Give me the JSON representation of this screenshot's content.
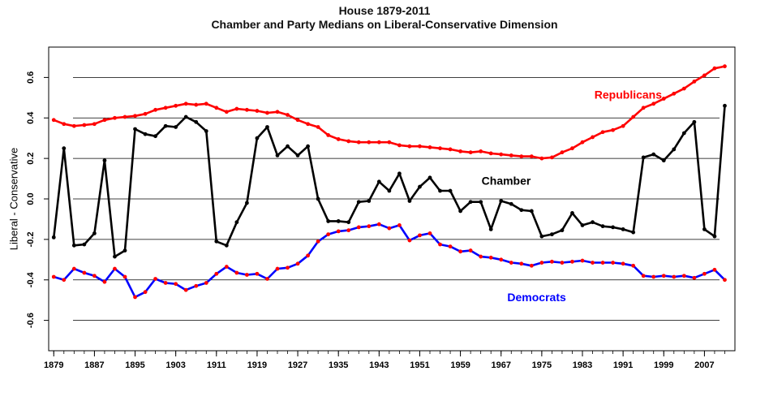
{
  "chart_data": {
    "type": "line",
    "title": "House 1879-2011",
    "subtitle": "Chamber and Party Medians on Liberal-Conservative Dimension",
    "xlabel": "",
    "ylabel": "Liberal - Conservative",
    "xlim": [
      1878,
      2013
    ],
    "ylim": [
      -0.75,
      0.75
    ],
    "x_ticks": [
      1879,
      1887,
      1895,
      1903,
      1911,
      1919,
      1927,
      1935,
      1943,
      1951,
      1959,
      1967,
      1975,
      1983,
      1991,
      1999,
      2007
    ],
    "y_ticks": [
      0.6,
      0.4,
      0.2,
      0.0,
      -0.2,
      -0.4,
      -0.6
    ],
    "y_tick_labels": [
      "0.6",
      "0.4",
      "0.2",
      "0.0",
      "-0.2",
      "-0.4",
      "-0.6"
    ],
    "gridlines_y": [
      0.6,
      0.4,
      0.2,
      0.0,
      -0.2,
      -0.4,
      -0.6
    ],
    "x": [
      1879,
      1881,
      1883,
      1885,
      1887,
      1889,
      1891,
      1893,
      1895,
      1897,
      1899,
      1901,
      1903,
      1905,
      1907,
      1909,
      1911,
      1913,
      1915,
      1917,
      1919,
      1921,
      1923,
      1925,
      1927,
      1929,
      1931,
      1933,
      1935,
      1937,
      1939,
      1941,
      1943,
      1945,
      1947,
      1949,
      1951,
      1953,
      1955,
      1957,
      1959,
      1961,
      1963,
      1965,
      1967,
      1969,
      1971,
      1973,
      1975,
      1977,
      1979,
      1981,
      1983,
      1985,
      1987,
      1989,
      1991,
      1993,
      1995,
      1997,
      1999,
      2001,
      2003,
      2005,
      2007,
      2009,
      2011
    ],
    "series": [
      {
        "name": "Republicans",
        "color": "#ff0000",
        "values": [
          0.39,
          0.37,
          0.36,
          0.365,
          0.37,
          0.39,
          0.4,
          0.405,
          0.41,
          0.42,
          0.44,
          0.45,
          0.46,
          0.47,
          0.465,
          0.47,
          0.45,
          0.43,
          0.445,
          0.44,
          0.435,
          0.425,
          0.43,
          0.415,
          0.39,
          0.37,
          0.355,
          0.315,
          0.295,
          0.285,
          0.28,
          0.28,
          0.28,
          0.28,
          0.265,
          0.26,
          0.26,
          0.255,
          0.25,
          0.245,
          0.235,
          0.23,
          0.235,
          0.225,
          0.22,
          0.215,
          0.21,
          0.21,
          0.2,
          0.205,
          0.23,
          0.25,
          0.28,
          0.305,
          0.33,
          0.34,
          0.36,
          0.405,
          0.45,
          0.47,
          0.495,
          0.52,
          0.545,
          0.58,
          0.61,
          0.645,
          0.655
        ]
      },
      {
        "name": "Chamber",
        "color": "#000000",
        "values": [
          -0.19,
          0.25,
          -0.23,
          -0.225,
          -0.17,
          0.19,
          -0.285,
          -0.255,
          0.345,
          0.32,
          0.31,
          0.36,
          0.355,
          0.405,
          0.38,
          0.335,
          -0.21,
          -0.23,
          -0.115,
          -0.02,
          0.3,
          0.355,
          0.215,
          0.26,
          0.215,
          0.26,
          0.0,
          -0.11,
          -0.11,
          -0.115,
          -0.015,
          -0.01,
          0.085,
          0.04,
          0.125,
          -0.01,
          0.06,
          0.105,
          0.04,
          0.04,
          -0.06,
          -0.015,
          -0.015,
          -0.15,
          -0.01,
          -0.025,
          -0.055,
          -0.06,
          -0.185,
          -0.175,
          -0.155,
          -0.07,
          -0.13,
          -0.115,
          -0.135,
          -0.14,
          -0.15,
          -0.165,
          0.205,
          0.22,
          0.19,
          0.245,
          0.325,
          0.38,
          -0.15,
          -0.185,
          0.46
        ]
      },
      {
        "name": "Democrats",
        "color": "#0000ff",
        "values": [
          -0.385,
          -0.4,
          -0.345,
          -0.365,
          -0.38,
          -0.41,
          -0.345,
          -0.385,
          -0.485,
          -0.46,
          -0.395,
          -0.415,
          -0.42,
          -0.45,
          -0.43,
          -0.415,
          -0.37,
          -0.335,
          -0.365,
          -0.375,
          -0.37,
          -0.395,
          -0.345,
          -0.34,
          -0.32,
          -0.28,
          -0.21,
          -0.175,
          -0.16,
          -0.155,
          -0.14,
          -0.135,
          -0.125,
          -0.145,
          -0.13,
          -0.205,
          -0.18,
          -0.17,
          -0.225,
          -0.235,
          -0.26,
          -0.255,
          -0.285,
          -0.29,
          -0.3,
          -0.315,
          -0.32,
          -0.33,
          -0.315,
          -0.31,
          -0.315,
          -0.31,
          -0.305,
          -0.315,
          -0.315,
          -0.315,
          -0.32,
          -0.33,
          -0.38,
          -0.385,
          -0.38,
          -0.385,
          -0.38,
          -0.39,
          -0.37,
          -0.35,
          -0.4
        ]
      }
    ],
    "annotations": [
      {
        "text": "Republicans",
        "color": "#ff0000",
        "x": 1992,
        "y": 0.495
      },
      {
        "text": "Chamber",
        "color": "#000000",
        "x": 1968,
        "y": 0.07
      },
      {
        "text": "Democrats",
        "color": "#0000ff",
        "x": 1974,
        "y": -0.505
      }
    ],
    "legend": "none",
    "grid": "horizontal"
  }
}
